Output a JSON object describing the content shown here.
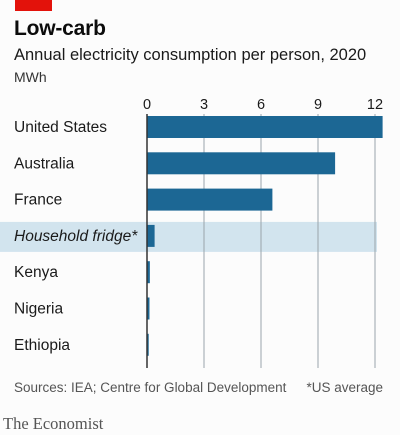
{
  "header": {
    "title": "Low-carb",
    "subtitle": "Annual electricity consumption per person, 2020",
    "unit": "MWh"
  },
  "footer": {
    "source": "Sources: IEA; Centre for Global Development",
    "note": "*US average",
    "brand": "The Economist"
  },
  "colors": {
    "bar": "#1c6794",
    "highlight": "#d2e4ee",
    "accent": "#e3120b",
    "grid": "#9aa5ab"
  },
  "chart_data": {
    "type": "bar",
    "orientation": "horizontal",
    "title": "Low-carb",
    "subtitle": "Annual electricity consumption per person, 2020",
    "xlabel": "MWh",
    "ylabel": "",
    "xlim": [
      0,
      12
    ],
    "xticks": [
      0,
      3,
      6,
      9,
      12
    ],
    "grid": true,
    "categories": [
      "United States",
      "Australia",
      "France",
      "Household fridge*",
      "Kenya",
      "Nigeria",
      "Ethiopia"
    ],
    "values": [
      12.4,
      9.9,
      6.6,
      0.4,
      0.15,
      0.13,
      0.09
    ],
    "highlighted": [
      "Household fridge*"
    ]
  }
}
